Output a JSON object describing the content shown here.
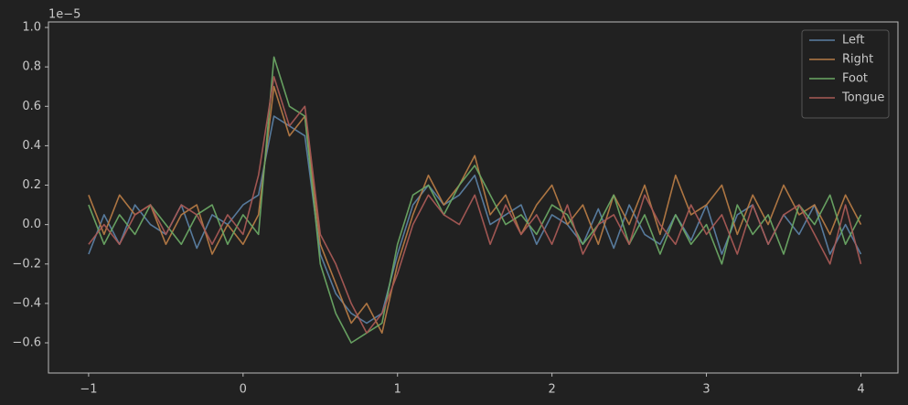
{
  "chart_data": {
    "type": "line",
    "y_offset_label": "1e−5",
    "x": [
      -1.0,
      -0.9,
      -0.8,
      -0.7,
      -0.6,
      -0.5,
      -0.4,
      -0.3,
      -0.2,
      -0.1,
      0.0,
      0.1,
      0.2,
      0.3,
      0.4,
      0.5,
      0.6,
      0.7,
      0.8,
      0.9,
      1.0,
      1.1,
      1.2,
      1.3,
      1.4,
      1.5,
      1.6,
      1.7,
      1.8,
      1.9,
      2.0,
      2.1,
      2.2,
      2.3,
      2.4,
      2.5,
      2.6,
      2.7,
      2.8,
      2.9,
      3.0,
      3.1,
      3.2,
      3.3,
      3.4,
      3.5,
      3.6,
      3.7,
      3.8,
      3.9,
      4.0
    ],
    "series": [
      {
        "name": "Left",
        "color": "#5b7fa3",
        "values": [
          -0.15,
          0.05,
          -0.1,
          0.1,
          0.0,
          -0.05,
          0.1,
          -0.12,
          0.05,
          0.0,
          0.1,
          0.15,
          0.55,
          0.5,
          0.45,
          -0.15,
          -0.35,
          -0.45,
          -0.5,
          -0.45,
          -0.15,
          0.1,
          0.2,
          0.1,
          0.15,
          0.25,
          0.0,
          0.05,
          0.1,
          -0.1,
          0.05,
          0.0,
          -0.1,
          0.08,
          -0.12,
          0.1,
          -0.05,
          -0.1,
          0.05,
          -0.08,
          0.1,
          -0.15,
          0.05,
          0.1,
          -0.1,
          0.05,
          -0.05,
          0.1,
          -0.15,
          0.0,
          -0.15
        ]
      },
      {
        "name": "Right",
        "color": "#b57a45",
        "values": [
          0.15,
          -0.05,
          0.15,
          0.05,
          0.1,
          -0.1,
          0.05,
          0.1,
          -0.15,
          0.0,
          -0.1,
          0.05,
          0.7,
          0.45,
          0.55,
          -0.1,
          -0.3,
          -0.5,
          -0.4,
          -0.55,
          -0.2,
          0.05,
          0.25,
          0.1,
          0.2,
          0.35,
          0.05,
          0.15,
          -0.05,
          0.1,
          0.2,
          0.0,
          0.1,
          -0.1,
          0.15,
          0.0,
          0.2,
          -0.05,
          0.25,
          0.05,
          0.1,
          0.2,
          -0.05,
          0.15,
          0.0,
          0.2,
          0.05,
          0.1,
          -0.05,
          0.15,
          0.0
        ]
      },
      {
        "name": "Foot",
        "color": "#6aa764",
        "values": [
          0.1,
          -0.1,
          0.05,
          -0.05,
          0.1,
          0.0,
          -0.1,
          0.05,
          0.1,
          -0.1,
          0.05,
          -0.05,
          0.85,
          0.6,
          0.55,
          -0.2,
          -0.45,
          -0.6,
          -0.55,
          -0.5,
          -0.1,
          0.15,
          0.2,
          0.05,
          0.2,
          0.3,
          0.15,
          0.0,
          0.05,
          -0.05,
          0.1,
          0.05,
          -0.1,
          0.0,
          0.15,
          -0.1,
          0.05,
          -0.15,
          0.05,
          -0.1,
          0.0,
          -0.2,
          0.1,
          -0.05,
          0.05,
          -0.15,
          0.1,
          0.0,
          0.15,
          -0.1,
          0.05
        ]
      },
      {
        "name": "Tongue",
        "color": "#a85a55",
        "values": [
          -0.1,
          0.0,
          -0.1,
          0.05,
          0.1,
          -0.05,
          0.1,
          0.05,
          -0.1,
          0.05,
          -0.05,
          0.25,
          0.75,
          0.5,
          0.6,
          -0.05,
          -0.2,
          -0.4,
          -0.55,
          -0.45,
          -0.25,
          0.0,
          0.15,
          0.05,
          0.0,
          0.15,
          -0.1,
          0.1,
          -0.05,
          0.05,
          -0.1,
          0.1,
          -0.15,
          0.0,
          0.05,
          -0.1,
          0.15,
          0.0,
          -0.1,
          0.1,
          -0.05,
          0.05,
          -0.15,
          0.1,
          -0.1,
          0.05,
          0.1,
          -0.05,
          -0.2,
          0.1,
          -0.2
        ]
      }
    ],
    "xlim": [
      -1.26,
      4.24
    ],
    "ylim": [
      -0.753,
      1.028
    ],
    "xticks": [
      {
        "value": -1,
        "label": "−1"
      },
      0,
      1,
      2,
      3,
      4
    ],
    "yticks": [
      {
        "value": -0.6,
        "label": "−0.6"
      },
      {
        "value": -0.4,
        "label": "−0.4"
      },
      {
        "value": -0.2,
        "label": "−0.2"
      },
      {
        "value": 0,
        "label": "0.0"
      },
      0.2,
      0.4,
      0.6,
      0.8,
      {
        "value": 1,
        "label": "1.0"
      }
    ],
    "grid": false,
    "legend": "upper right"
  }
}
